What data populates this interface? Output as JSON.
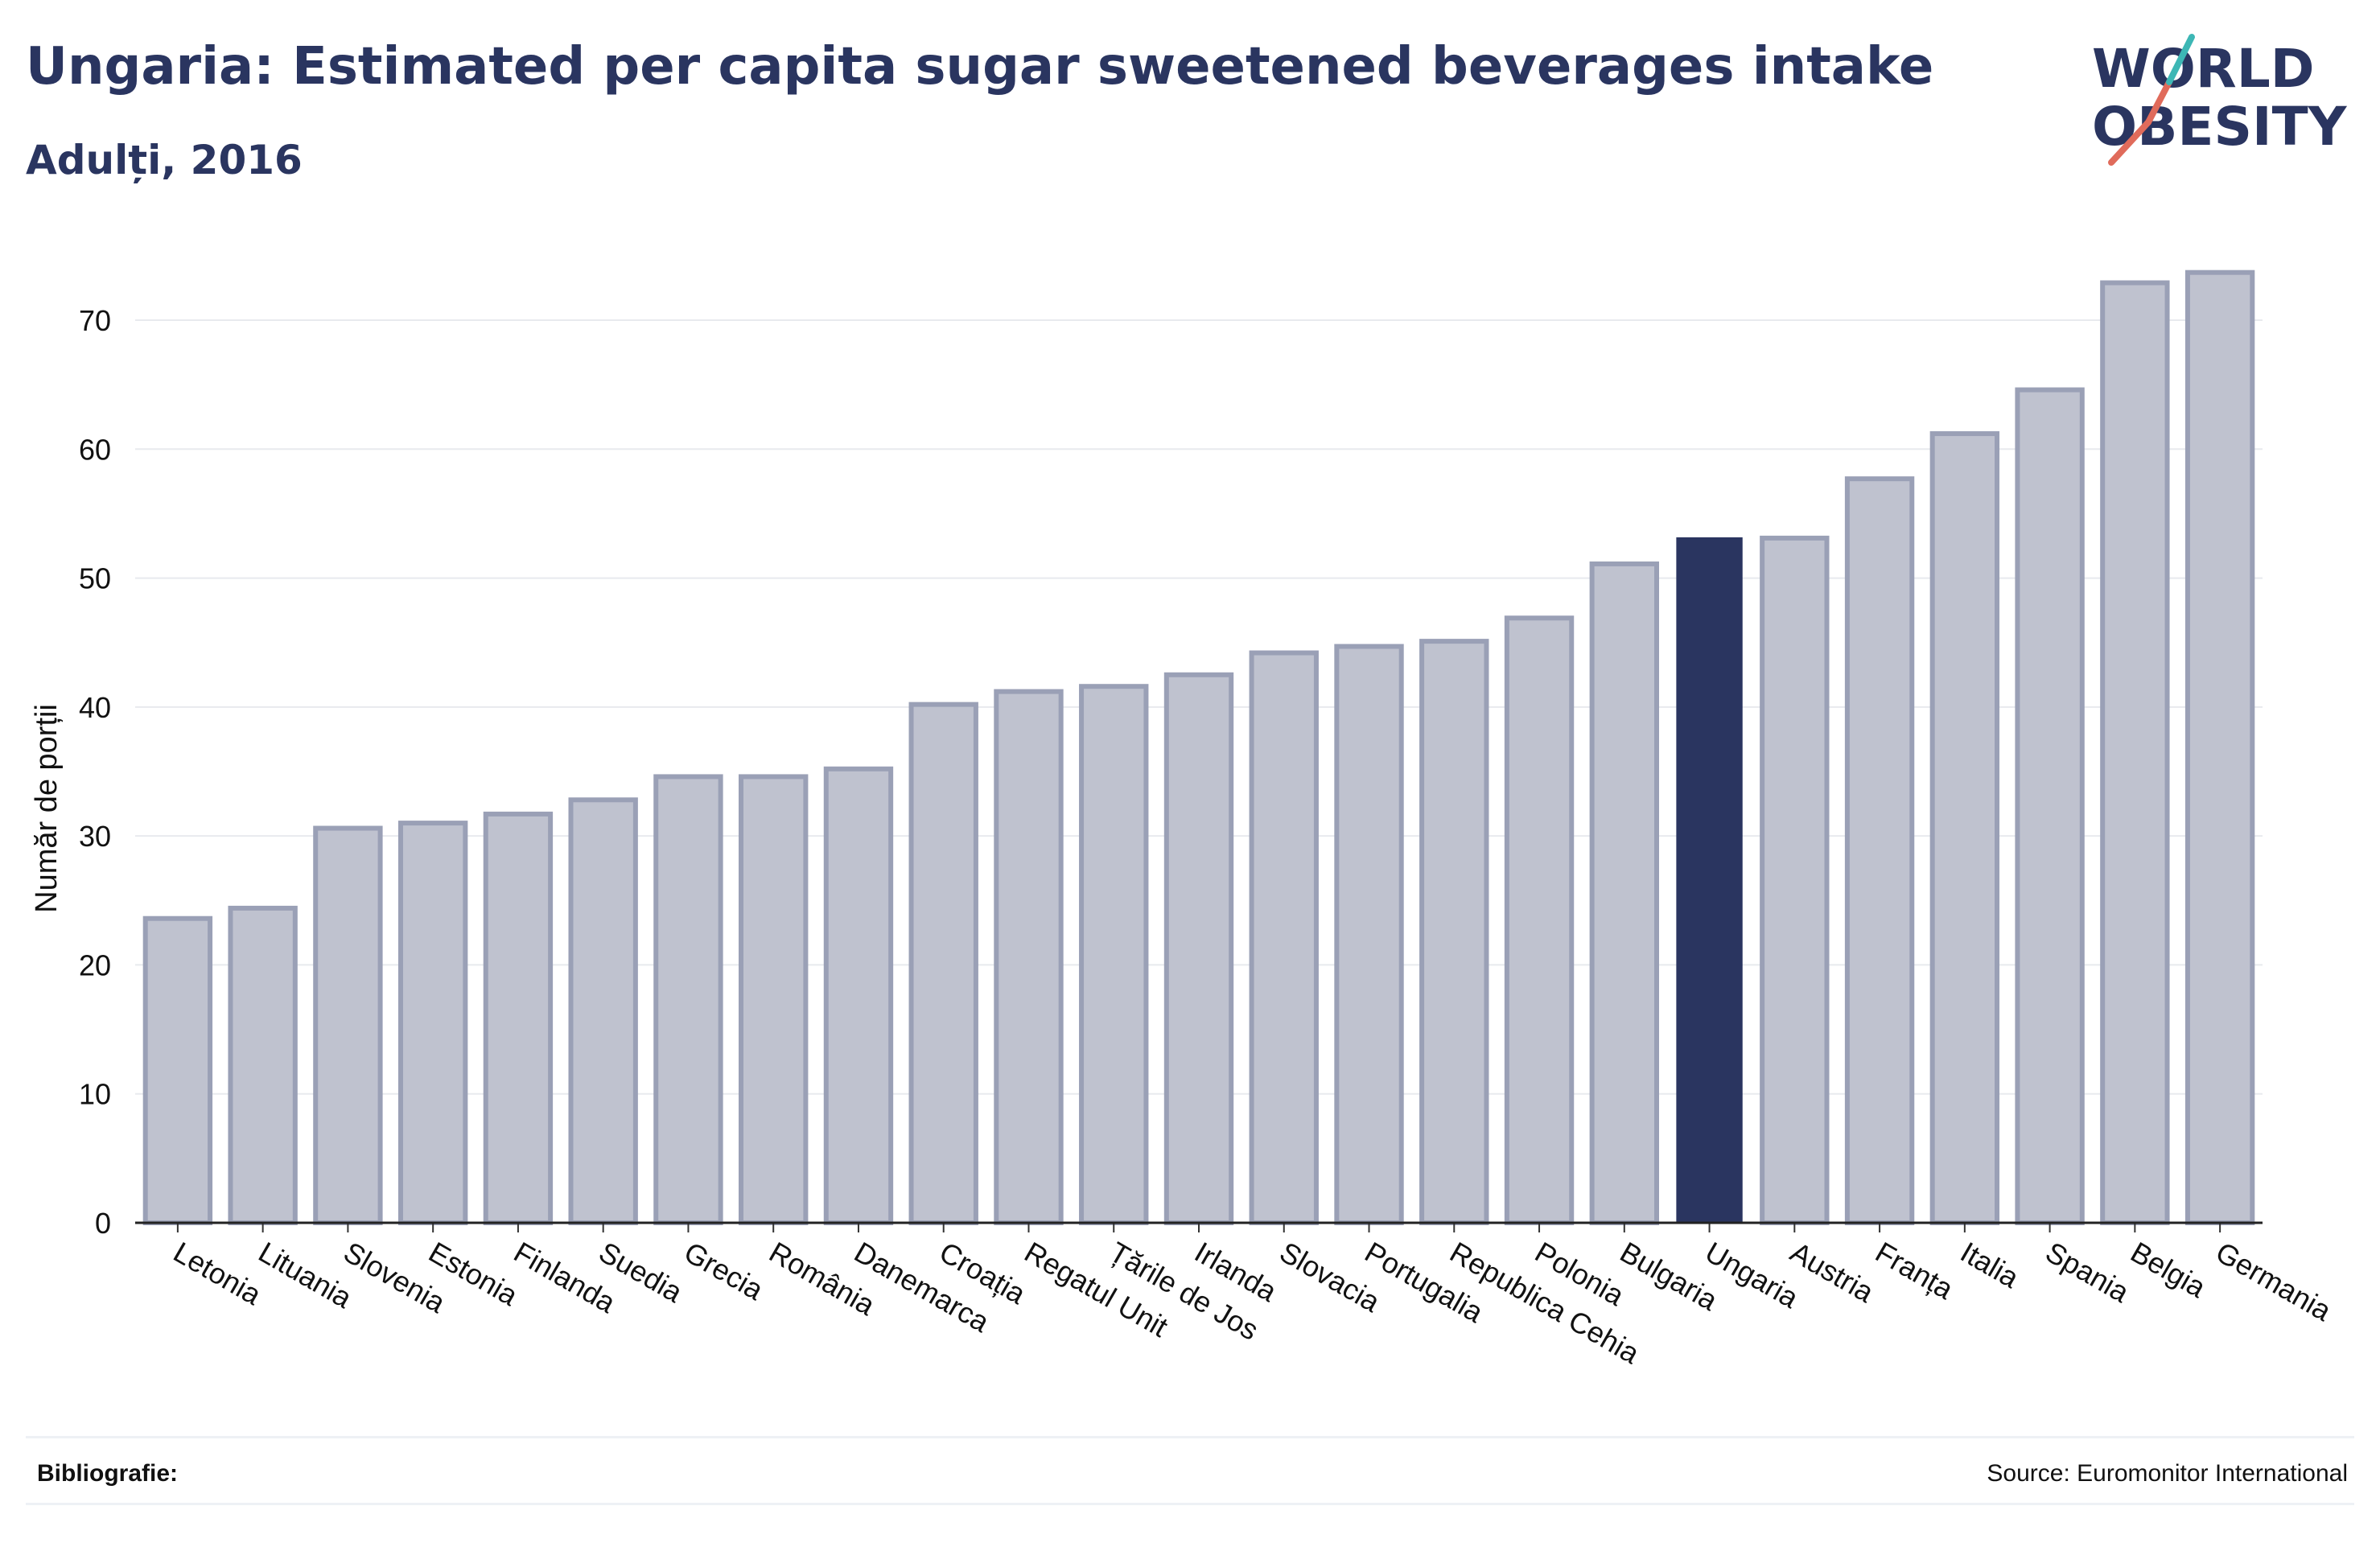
{
  "title": "Ungaria: Estimated per capita sugar sweetened beverages intake",
  "subtitle": "Adulți, 2016",
  "logo": {
    "line1": "WORLD",
    "line2": "OBESITY"
  },
  "footer": {
    "bibliography_label": "Bibliografie:",
    "source": "Source: Euromonitor International"
  },
  "colors": {
    "bar_fill": "#bfc2cf",
    "bar_stroke": "#9aa0b6",
    "highlight_fill": "#2a3560",
    "title": "#2a3560",
    "grid": "#e8eaee",
    "logo_teal": "#3db7b5",
    "logo_coral": "#e06b5b"
  },
  "chart_data": {
    "type": "bar",
    "title": "Ungaria: Estimated per capita sugar sweetened beverages intake",
    "subtitle": "Adulți, 2016",
    "xlabel": "",
    "ylabel": "Număr de porții",
    "ylim": [
      0,
      75
    ],
    "yticks": [
      0,
      10,
      20,
      30,
      40,
      50,
      60,
      70
    ],
    "grid": true,
    "highlight": "Ungaria",
    "categories": [
      "Letonia",
      "Lituania",
      "Slovenia",
      "Estonia",
      "Finlanda",
      "Suedia",
      "Grecia",
      "România",
      "Danemarca",
      "Croația",
      "Regatul Unit",
      "Țările de Jos",
      "Irlanda",
      "Slovacia",
      "Portugalia",
      "Republica Cehia",
      "Polonia",
      "Bulgaria",
      "Ungaria",
      "Austria",
      "Franța",
      "Italia",
      "Spania",
      "Belgia",
      "Germania"
    ],
    "values": [
      23.6,
      24.4,
      30.6,
      31.0,
      31.7,
      32.8,
      34.6,
      34.6,
      35.2,
      40.2,
      41.2,
      41.6,
      42.5,
      44.2,
      44.7,
      45.1,
      46.9,
      51.1,
      53.1,
      53.1,
      57.7,
      61.2,
      64.6,
      72.9,
      73.7
    ]
  }
}
